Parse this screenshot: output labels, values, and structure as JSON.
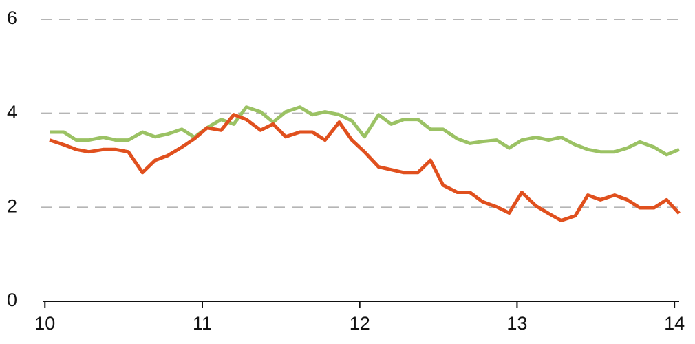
{
  "chart_data": {
    "type": "line",
    "x": [
      10.03,
      10.12,
      10.2,
      10.28,
      10.37,
      10.45,
      10.53,
      10.62,
      10.7,
      10.78,
      10.87,
      10.95,
      11.03,
      11.12,
      11.2,
      11.28,
      11.37,
      11.45,
      11.53,
      11.62,
      11.7,
      11.78,
      11.87,
      11.95,
      12.03,
      12.12,
      12.2,
      12.28,
      12.37,
      12.45,
      12.53,
      12.62,
      12.7,
      12.78,
      12.87,
      12.95,
      13.03,
      13.12,
      13.2,
      13.28,
      13.37,
      13.45,
      13.53,
      13.62,
      13.7,
      13.78,
      13.87,
      13.95,
      14.03
    ],
    "series": [
      {
        "color": "#9bc264",
        "values": [
          3.6,
          3.6,
          3.43,
          3.43,
          3.49,
          3.43,
          3.43,
          3.6,
          3.5,
          3.56,
          3.66,
          3.49,
          3.69,
          3.87,
          3.77,
          4.13,
          4.03,
          3.81,
          4.03,
          4.13,
          3.97,
          4.03,
          3.97,
          3.84,
          3.5,
          3.97,
          3.77,
          3.87,
          3.87,
          3.66,
          3.66,
          3.46,
          3.36,
          3.4,
          3.43,
          3.26,
          3.43,
          3.49,
          3.43,
          3.49,
          3.33,
          3.23,
          3.18,
          3.18,
          3.26,
          3.39,
          3.28,
          3.12,
          3.23
        ]
      },
      {
        "color": "#e0501e",
        "values": [
          3.43,
          3.33,
          3.23,
          3.18,
          3.23,
          3.23,
          3.18,
          2.74,
          3.0,
          3.1,
          3.28,
          3.46,
          3.69,
          3.64,
          3.97,
          3.87,
          3.64,
          3.77,
          3.5,
          3.6,
          3.6,
          3.43,
          3.81,
          3.43,
          3.18,
          2.86,
          2.8,
          2.74,
          2.74,
          3.0,
          2.47,
          2.32,
          2.32,
          2.12,
          2.01,
          1.88,
          2.32,
          2.03,
          1.87,
          1.72,
          1.82,
          2.26,
          2.16,
          2.26,
          2.16,
          1.99,
          1.99,
          2.16,
          1.87
        ]
      }
    ],
    "xlim": [
      9.99,
      14.03
    ],
    "xticks": [
      10,
      11,
      12,
      13,
      14
    ],
    "ylim": [
      0,
      6
    ],
    "yticks": [
      0,
      2,
      4,
      6
    ],
    "grid": true
  }
}
